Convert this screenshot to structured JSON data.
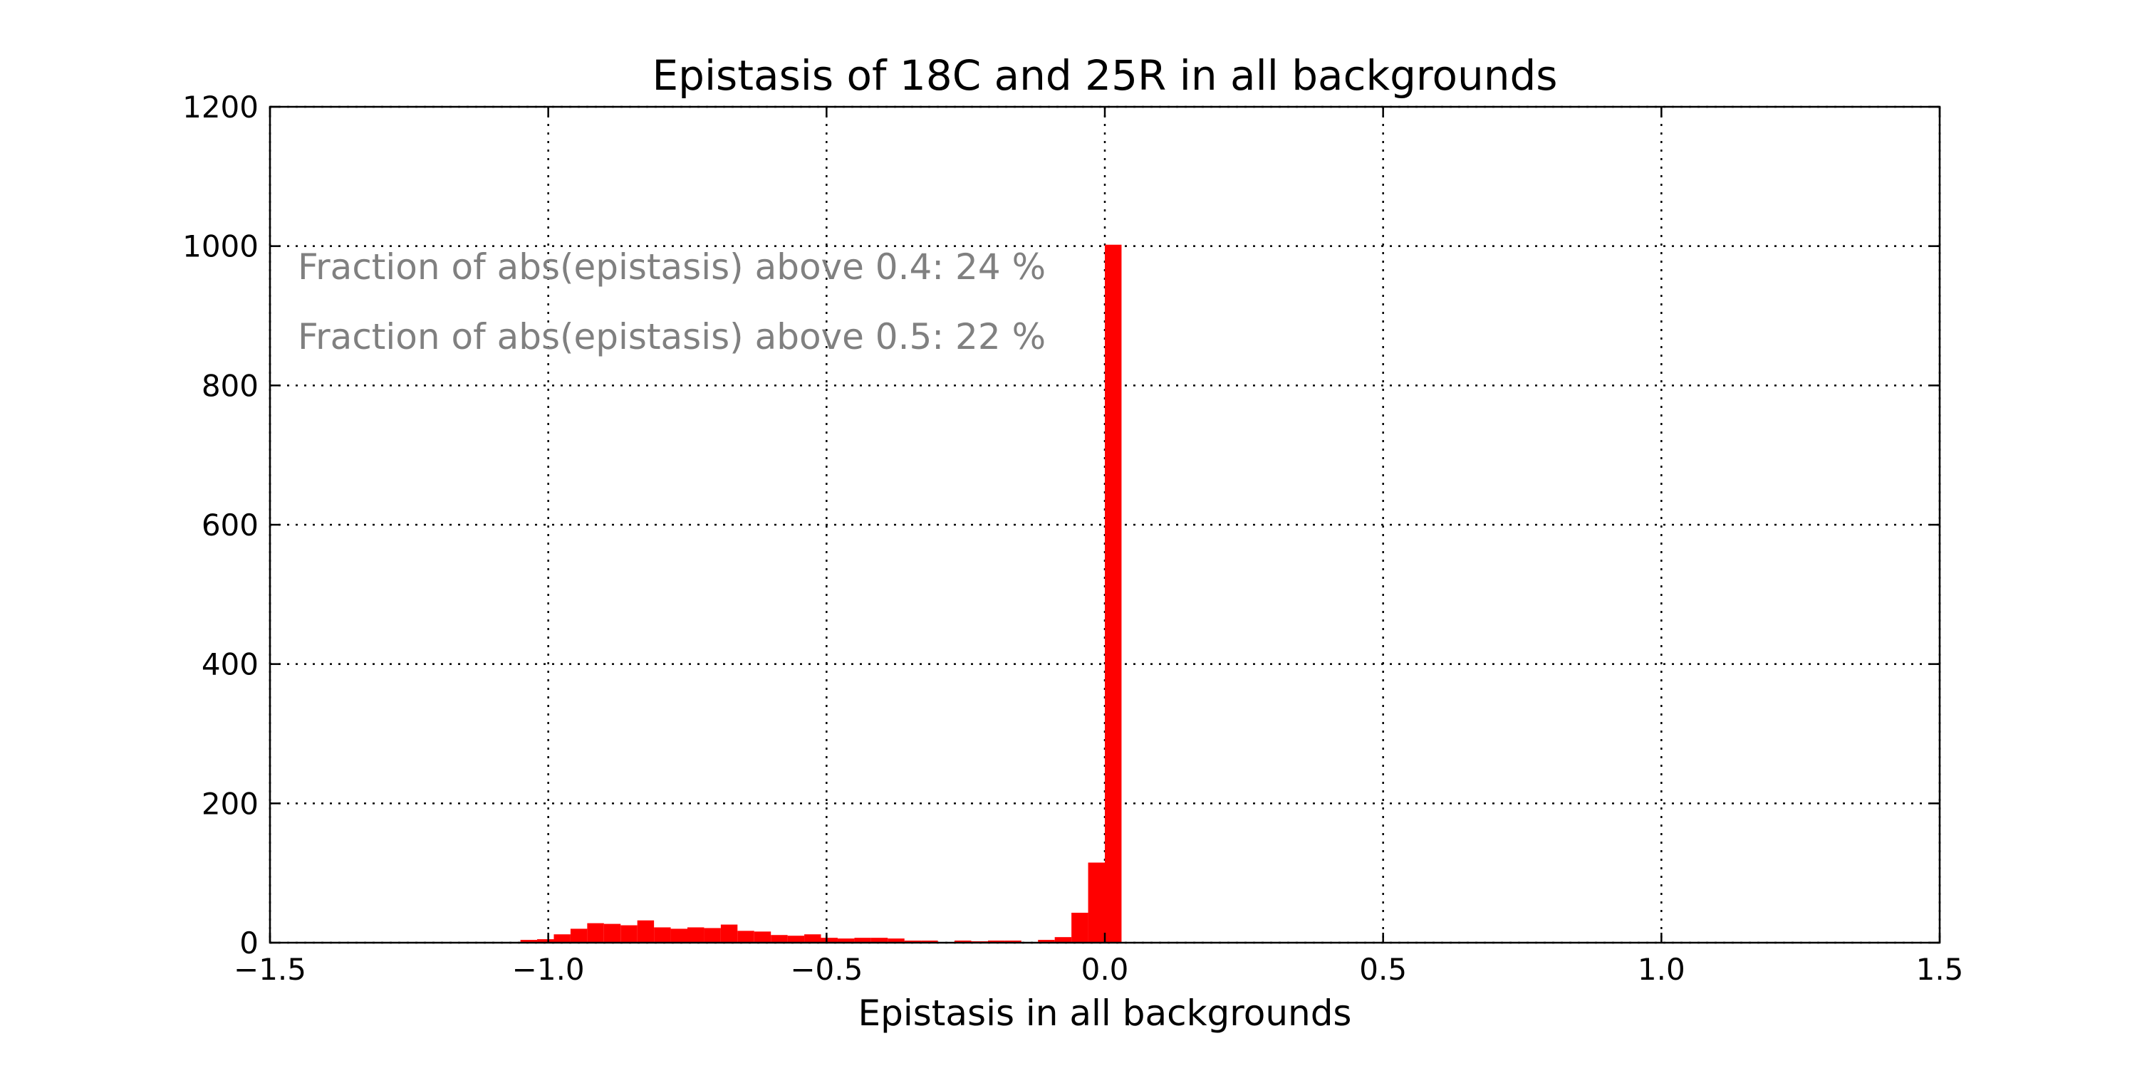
{
  "chart_data": {
    "type": "bar",
    "title": "Epistasis of 18C and 25R in all backgrounds",
    "xlabel": "Epistasis in all backgrounds",
    "ylabel": "",
    "xlim": [
      -1.5,
      1.5
    ],
    "ylim": [
      0,
      1200
    ],
    "grid": true,
    "bin_width": 0.03,
    "x_ticks": [
      "−1.5",
      "−1.0",
      "−0.5",
      "0.0",
      "0.5",
      "1.0",
      "1.5"
    ],
    "x_tick_values": [
      -1.5,
      -1.0,
      -0.5,
      0.0,
      0.5,
      1.0,
      1.5
    ],
    "y_ticks": [
      "0",
      "200",
      "400",
      "600",
      "800",
      "1000",
      "1200"
    ],
    "y_tick_values": [
      0,
      200,
      400,
      600,
      800,
      1000,
      1200
    ],
    "bins": [
      {
        "x": -1.05,
        "y": 4
      },
      {
        "x": -1.02,
        "y": 5
      },
      {
        "x": -0.99,
        "y": 12
      },
      {
        "x": -0.96,
        "y": 20
      },
      {
        "x": -0.93,
        "y": 28
      },
      {
        "x": -0.9,
        "y": 27
      },
      {
        "x": -0.87,
        "y": 25
      },
      {
        "x": -0.84,
        "y": 32
      },
      {
        "x": -0.81,
        "y": 22
      },
      {
        "x": -0.78,
        "y": 20
      },
      {
        "x": -0.75,
        "y": 22
      },
      {
        "x": -0.72,
        "y": 21
      },
      {
        "x": -0.69,
        "y": 26
      },
      {
        "x": -0.66,
        "y": 17
      },
      {
        "x": -0.63,
        "y": 16
      },
      {
        "x": -0.6,
        "y": 11
      },
      {
        "x": -0.57,
        "y": 10
      },
      {
        "x": -0.54,
        "y": 12
      },
      {
        "x": -0.51,
        "y": 7
      },
      {
        "x": -0.48,
        "y": 6
      },
      {
        "x": -0.45,
        "y": 7
      },
      {
        "x": -0.42,
        "y": 7
      },
      {
        "x": -0.39,
        "y": 6
      },
      {
        "x": -0.36,
        "y": 3
      },
      {
        "x": -0.33,
        "y": 3
      },
      {
        "x": -0.27,
        "y": 3
      },
      {
        "x": -0.24,
        "y": 2
      },
      {
        "x": -0.21,
        "y": 3
      },
      {
        "x": -0.18,
        "y": 3
      },
      {
        "x": -0.12,
        "y": 4
      },
      {
        "x": -0.09,
        "y": 8
      },
      {
        "x": -0.06,
        "y": 43
      },
      {
        "x": -0.03,
        "y": 115
      },
      {
        "x": 0.0,
        "y": 1002
      }
    ],
    "annotations": [
      "Fraction of abs(epistasis) above 0.4: 24 %",
      "Fraction of abs(epistasis) above 0.5: 22 %"
    ],
    "colors": {
      "bar": "#ff0000",
      "annotation": "#808080"
    }
  }
}
